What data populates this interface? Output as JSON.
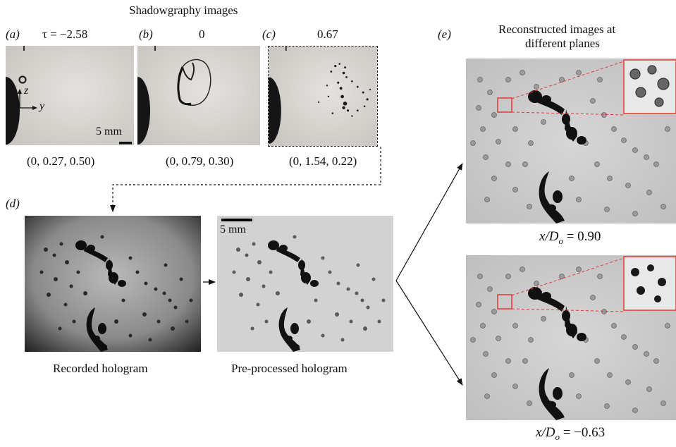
{
  "header": {
    "shadow_title": "Shadowgraphy images",
    "recon_title_1": "Reconstructed  images at",
    "recon_title_2": "different planes"
  },
  "panels": {
    "a": {
      "label": "(a)",
      "tau": "τ = −2.58",
      "coords": "(0, 0.27, 0.50)",
      "axis_z": "z",
      "axis_y": "y",
      "scale": "5 mm"
    },
    "b": {
      "label": "(b)",
      "tau": "0",
      "coords": "(0, 0.79, 0.30)"
    },
    "c": {
      "label": "(c)",
      "tau": "0.67",
      "coords": "(0, 1.54, 0.22)"
    },
    "d": {
      "label": "(d)",
      "recorded": "Recorded hologram",
      "preprocessed": "Pre-processed hologram",
      "scale": "5 mm"
    },
    "e": {
      "label": "(e)",
      "plane1_var": "x/D",
      "plane1_sub": "o",
      "plane1_val": " = 0.90",
      "plane2_var": "x/D",
      "plane2_sub": "o",
      "plane2_val": " = −0.63"
    }
  },
  "colors": {
    "zoom_box": "#e53935",
    "shadow_bg": "#dcdad6",
    "holo_bg": "#cfcfcf"
  }
}
